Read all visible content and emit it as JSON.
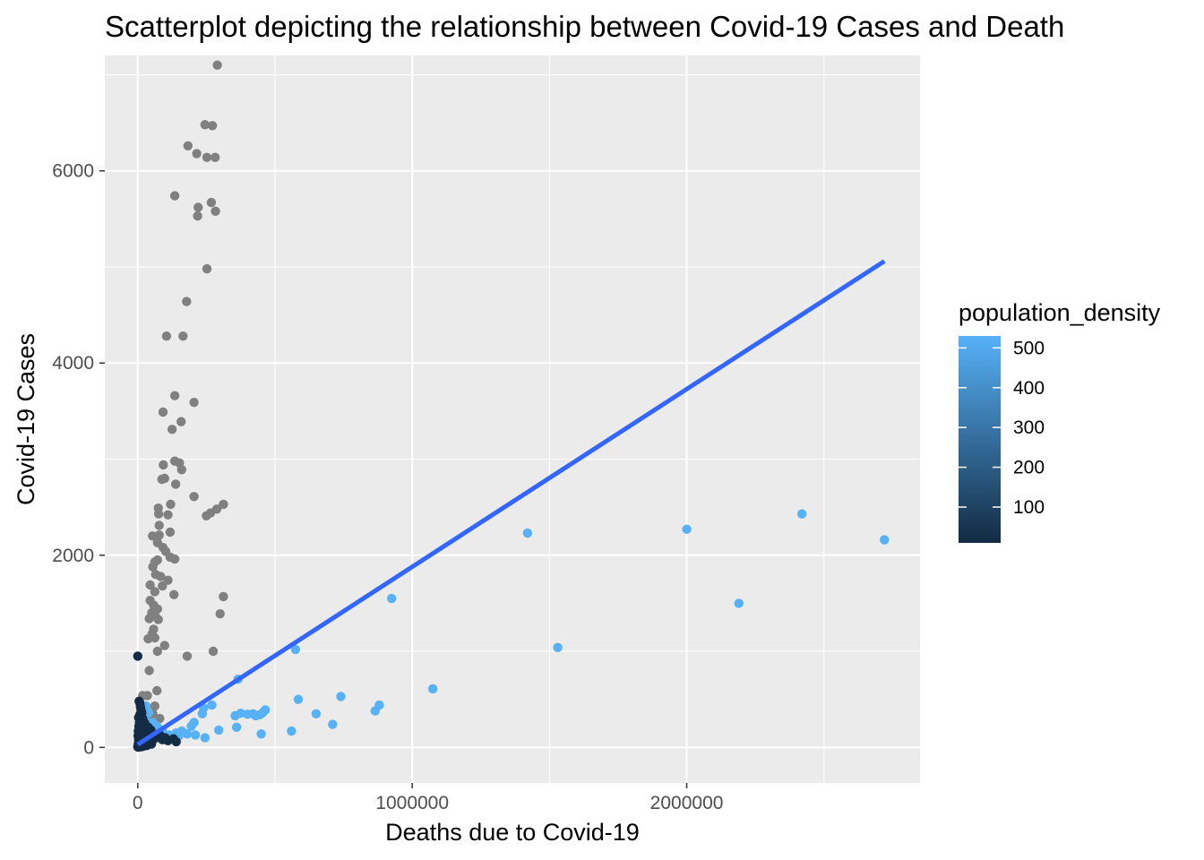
{
  "chart_data": {
    "type": "scatter",
    "title": "Scatterplot depicting the relationship between Covid-19 Cases and Death",
    "xlabel": "Deaths due to Covid-19",
    "ylabel": "Covid-19 Cases",
    "xlim": [
      -120000,
      2850000
    ],
    "ylim": [
      -370,
      7200
    ],
    "x_ticks": [
      0,
      1000000,
      2000000
    ],
    "x_tick_labels": [
      "0",
      "1000000",
      "2000000"
    ],
    "y_ticks": [
      0,
      2000,
      4000,
      6000
    ],
    "y_tick_labels": [
      "0",
      "2000",
      "4000",
      "6000"
    ],
    "grid": true,
    "background": "#EBEBEB",
    "legend": {
      "title": "population_density",
      "placement": "right",
      "type": "colorbar",
      "range": [
        10,
        530
      ],
      "breaks": [
        100,
        200,
        300,
        400,
        500
      ],
      "break_labels": [
        "100",
        "200",
        "300",
        "400",
        "500"
      ],
      "low_color": "#132B43",
      "high_color": "#56B1F7",
      "na_color": "#808080"
    },
    "trend_line": {
      "method": "linear",
      "color": "#3366FF",
      "x": [
        0,
        2720000
      ],
      "y": [
        30,
        5060
      ]
    },
    "series": [
      {
        "color_group": "na",
        "color": "#808080",
        "points": [
          [
            290000,
            7100
          ],
          [
            245000,
            6480
          ],
          [
            272000,
            6470
          ],
          [
            183000,
            6260
          ],
          [
            215000,
            6180
          ],
          [
            252000,
            6140
          ],
          [
            282000,
            6140
          ],
          [
            135000,
            5740
          ],
          [
            268000,
            5670
          ],
          [
            220000,
            5620
          ],
          [
            218000,
            5530
          ],
          [
            283000,
            5580
          ],
          [
            252000,
            4980
          ],
          [
            178000,
            4640
          ],
          [
            105000,
            4280
          ],
          [
            165000,
            4280
          ],
          [
            135000,
            3660
          ],
          [
            205000,
            3590
          ],
          [
            92000,
            3490
          ],
          [
            158000,
            3390
          ],
          [
            125000,
            3310
          ],
          [
            152000,
            2960
          ],
          [
            135000,
            2980
          ],
          [
            93000,
            2940
          ],
          [
            160000,
            2890
          ],
          [
            88000,
            2790
          ],
          [
            98000,
            2800
          ],
          [
            138000,
            2740
          ],
          [
            205000,
            2610
          ],
          [
            75000,
            2490
          ],
          [
            120000,
            2530
          ],
          [
            312000,
            2530
          ],
          [
            76000,
            2430
          ],
          [
            110000,
            2420
          ],
          [
            288000,
            2480
          ],
          [
            265000,
            2440
          ],
          [
            250000,
            2410
          ],
          [
            78000,
            2310
          ],
          [
            54000,
            2200
          ],
          [
            78000,
            2210
          ],
          [
            118000,
            2240
          ],
          [
            72000,
            2130
          ],
          [
            92000,
            2080
          ],
          [
            102000,
            2040
          ],
          [
            118000,
            1980
          ],
          [
            135000,
            1960
          ],
          [
            62000,
            1930
          ],
          [
            72000,
            1950
          ],
          [
            55000,
            1880
          ],
          [
            65000,
            1800
          ],
          [
            83000,
            1780
          ],
          [
            110000,
            1740
          ],
          [
            90000,
            1680
          ],
          [
            45000,
            1690
          ],
          [
            62000,
            1620
          ],
          [
            132000,
            1590
          ],
          [
            312000,
            1570
          ],
          [
            45000,
            1530
          ],
          [
            58000,
            1480
          ],
          [
            72000,
            1440
          ],
          [
            51000,
            1400
          ],
          [
            63000,
            1370
          ],
          [
            300000,
            1390
          ],
          [
            42000,
            1340
          ],
          [
            75000,
            1330
          ],
          [
            58000,
            1230
          ],
          [
            52000,
            1180
          ],
          [
            38000,
            1130
          ],
          [
            62000,
            1140
          ],
          [
            98000,
            1060
          ],
          [
            72000,
            1000
          ],
          [
            275000,
            1000
          ],
          [
            180000,
            950
          ],
          [
            42000,
            800
          ],
          [
            70000,
            590
          ],
          [
            35000,
            540
          ],
          [
            18000,
            540
          ],
          [
            62000,
            430
          ],
          [
            55000,
            350
          ],
          [
            40000,
            320
          ],
          [
            80000,
            300
          ],
          [
            30000,
            280
          ],
          [
            50000,
            250
          ],
          [
            22000,
            220
          ],
          [
            60000,
            190
          ],
          [
            45000,
            170
          ],
          [
            35000,
            140
          ],
          [
            75000,
            120
          ],
          [
            25000,
            100
          ],
          [
            55000,
            80
          ],
          [
            15000,
            60
          ],
          [
            40000,
            40
          ]
        ]
      },
      {
        "color_group": "high_density",
        "color": "#56B1F7",
        "points": [
          [
            2720000,
            2160
          ],
          [
            2420000,
            2430
          ],
          [
            2000000,
            2270
          ],
          [
            1420000,
            2230
          ],
          [
            2190000,
            1500
          ],
          [
            925000,
            1550
          ],
          [
            1530000,
            1040
          ],
          [
            1075000,
            610
          ],
          [
            575000,
            1020
          ],
          [
            365000,
            710
          ],
          [
            585000,
            500
          ],
          [
            740000,
            530
          ],
          [
            650000,
            350
          ],
          [
            710000,
            240
          ],
          [
            880000,
            440
          ],
          [
            865000,
            380
          ],
          [
            465000,
            390
          ],
          [
            420000,
            350
          ],
          [
            455000,
            360
          ],
          [
            375000,
            355
          ],
          [
            355000,
            330
          ],
          [
            445000,
            340
          ],
          [
            430000,
            330
          ],
          [
            400000,
            345
          ],
          [
            270000,
            440
          ],
          [
            240000,
            410
          ],
          [
            235000,
            350
          ],
          [
            360000,
            210
          ],
          [
            450000,
            140
          ],
          [
            560000,
            170
          ],
          [
            295000,
            180
          ],
          [
            245000,
            100
          ],
          [
            205000,
            260
          ],
          [
            195000,
            220
          ],
          [
            160000,
            170
          ],
          [
            140000,
            150
          ],
          [
            115000,
            130
          ],
          [
            90000,
            180
          ],
          [
            70000,
            220
          ],
          [
            55000,
            260
          ],
          [
            40000,
            360
          ],
          [
            30000,
            430
          ],
          [
            25000,
            300
          ],
          [
            20000,
            250
          ],
          [
            210000,
            130
          ],
          [
            180000,
            140
          ],
          [
            150000,
            120
          ],
          [
            120000,
            100
          ],
          [
            95000,
            90
          ],
          [
            80000,
            150
          ]
        ]
      },
      {
        "color_group": "low_density",
        "color": "#132B43",
        "points": [
          [
            0,
            950
          ],
          [
            5000,
            480
          ],
          [
            8000,
            460
          ],
          [
            10000,
            420
          ],
          [
            12000,
            390
          ],
          [
            15000,
            360
          ],
          [
            8000,
            340
          ],
          [
            3000,
            310
          ],
          [
            18000,
            300
          ],
          [
            20000,
            280
          ],
          [
            6000,
            260
          ],
          [
            25000,
            240
          ],
          [
            4000,
            220
          ],
          [
            14000,
            200
          ],
          [
            28000,
            180
          ],
          [
            2000,
            170
          ],
          [
            9000,
            160
          ],
          [
            30000,
            150
          ],
          [
            16000,
            140
          ],
          [
            22000,
            130
          ],
          [
            1000,
            120
          ],
          [
            7000,
            110
          ],
          [
            12000,
            100
          ],
          [
            35000,
            95
          ],
          [
            24000,
            90
          ],
          [
            3000,
            80
          ],
          [
            40000,
            75
          ],
          [
            18000,
            70
          ],
          [
            5000,
            60
          ],
          [
            45000,
            55
          ],
          [
            10000,
            50
          ],
          [
            27000,
            45
          ],
          [
            2000,
            40
          ],
          [
            50000,
            35
          ],
          [
            15000,
            30
          ],
          [
            6000,
            25
          ],
          [
            33000,
            20
          ],
          [
            1000,
            15
          ],
          [
            20000,
            12
          ],
          [
            8000,
            10
          ],
          [
            4000,
            8
          ],
          [
            12000,
            6
          ],
          [
            0,
            5
          ],
          [
            2000,
            3
          ],
          [
            60000,
            90
          ],
          [
            70000,
            110
          ],
          [
            80000,
            130
          ],
          [
            90000,
            80
          ],
          [
            100000,
            100
          ],
          [
            110000,
            70
          ],
          [
            130000,
            90
          ],
          [
            140000,
            60
          ],
          [
            48000,
            180
          ],
          [
            38000,
            210
          ],
          [
            26000,
            250
          ]
        ]
      }
    ]
  }
}
